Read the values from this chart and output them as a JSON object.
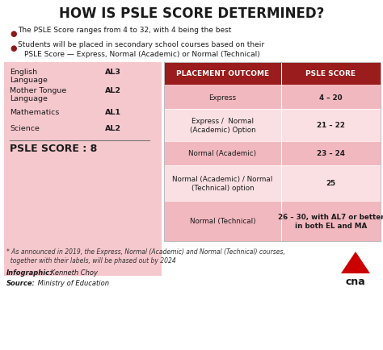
{
  "title": "HOW IS PSLE SCORE DETERMINED?",
  "bullet1": "The PSLE Score ranges from 4 to 32, with 4 being the best",
  "bullet2_line1": "Students will be placed in secondary school courses based on their",
  "bullet2_line2": "PSLE Score — Express, Normal (Academic) or Normal (Technical)",
  "left_subjects": [
    "English\nLanguage",
    "Mother Tongue\nLanguage",
    "Mathematics",
    "Science"
  ],
  "left_scores": [
    "AL3",
    "AL2",
    "AL1",
    "AL2"
  ],
  "psle_score_label": "PSLE SCORE : 8",
  "table_header": [
    "PLACEMENT OUTCOME",
    "PSLE SCORE"
  ],
  "table_rows": [
    [
      "Express",
      "4 – 20"
    ],
    [
      "Express /  Normal\n(Academic) Option",
      "21 – 22"
    ],
    [
      "Normal (Academic)",
      "23 – 24"
    ],
    [
      "Normal (Academic) / Normal\n(Technical) option",
      "25"
    ],
    [
      "Normal (Technical)",
      "26 – 30, with AL7 or better\nin both EL and MA"
    ]
  ],
  "footnote_line1": "* As announced in 2019, the Express, Normal (Academic) and Normal (Technical) courses,",
  "footnote_line2": "  together with their labels, will be phased out by 2024",
  "bg_color": "#ffffff",
  "header_bg": "#9b1c1c",
  "header_text_color": "#ffffff",
  "row_bg_dark": "#f2b8bf",
  "row_bg_light": "#fae0e3",
  "left_panel_bg": "#f5c8cd",
  "title_color": "#1a1a1a",
  "bullet_color": "#8b1a1a",
  "cna_red": "#cc0000"
}
